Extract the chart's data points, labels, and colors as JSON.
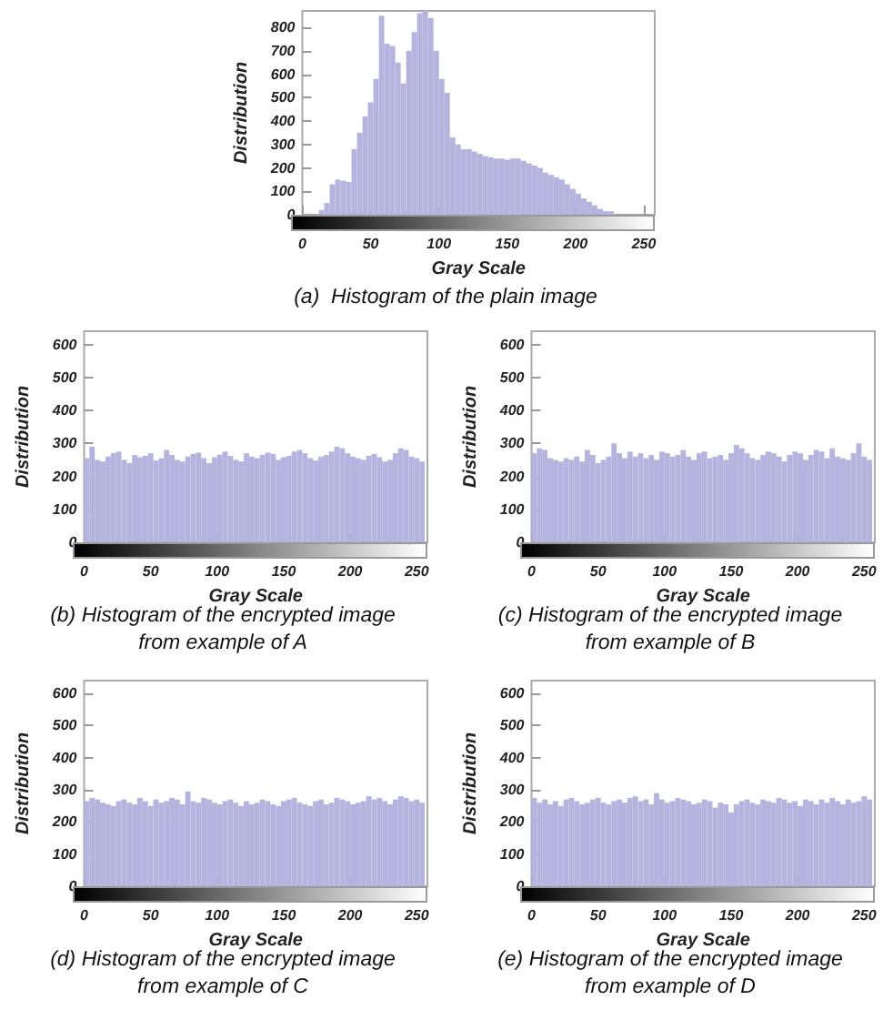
{
  "chart_data": [
    {
      "type": "histogram",
      "title": "(a)  Histogram of the plain image",
      "xlabel": "Gray Scale",
      "ylabel": "Distribution",
      "color": "#b4b4de",
      "xlim": [
        0,
        258
      ],
      "ylim": [
        0,
        870
      ],
      "xticks": [
        0,
        50,
        100,
        150,
        200,
        250
      ],
      "yticks": [
        0,
        100,
        200,
        300,
        400,
        500,
        600,
        700,
        800
      ],
      "bins": [
        0,
        4,
        8,
        12,
        16,
        20,
        24,
        28,
        32,
        36,
        40,
        44,
        48,
        52,
        56,
        60,
        64,
        68,
        72,
        76,
        80,
        84,
        88,
        92,
        96,
        100,
        104,
        108,
        112,
        116,
        120,
        124,
        128,
        132,
        136,
        140,
        144,
        148,
        152,
        156,
        160,
        164,
        168,
        172,
        176,
        180,
        184,
        188,
        192,
        196,
        200,
        204,
        208,
        212,
        216,
        220,
        224,
        228,
        232,
        236,
        240,
        244,
        248,
        252,
        256
      ],
      "values": [
        0,
        0,
        0,
        20,
        50,
        130,
        150,
        145,
        140,
        280,
        350,
        420,
        480,
        580,
        850,
        730,
        720,
        650,
        560,
        700,
        780,
        860,
        870,
        840,
        700,
        580,
        520,
        330,
        300,
        280,
        280,
        270,
        260,
        250,
        245,
        240,
        240,
        235,
        240,
        240,
        230,
        220,
        210,
        200,
        180,
        170,
        160,
        150,
        130,
        110,
        90,
        70,
        55,
        40,
        25,
        15,
        15,
        0,
        0,
        0,
        0,
        0,
        0,
        0
      ]
    },
    {
      "type": "histogram",
      "title": "(b) Histogram of the encrypted image\nfrom example of A",
      "xlabel": "Gray Scale",
      "ylabel": "Distribution",
      "color": "#b4b4de",
      "xlim": [
        0,
        258
      ],
      "ylim": [
        0,
        640
      ],
      "xticks": [
        0,
        50,
        100,
        150,
        200,
        250
      ],
      "yticks": [
        0,
        100,
        200,
        300,
        400,
        500,
        600
      ],
      "bins": [
        0,
        4,
        8,
        12,
        16,
        20,
        24,
        28,
        32,
        36,
        40,
        44,
        48,
        52,
        56,
        60,
        64,
        68,
        72,
        76,
        80,
        84,
        88,
        92,
        96,
        100,
        104,
        108,
        112,
        116,
        120,
        124,
        128,
        132,
        136,
        140,
        144,
        148,
        152,
        156,
        160,
        164,
        168,
        172,
        176,
        180,
        184,
        188,
        192,
        196,
        200,
        204,
        208,
        212,
        216,
        220,
        224,
        228,
        232,
        236,
        240,
        244,
        248,
        252,
        256
      ],
      "values": [
        255,
        290,
        250,
        245,
        260,
        270,
        275,
        250,
        240,
        265,
        258,
        262,
        270,
        248,
        255,
        280,
        265,
        250,
        245,
        260,
        268,
        272,
        255,
        240,
        258,
        266,
        275,
        262,
        250,
        245,
        270,
        260,
        255,
        265,
        272,
        268,
        250,
        258,
        262,
        275,
        280,
        270,
        255,
        248,
        260,
        265,
        275,
        290,
        285,
        270,
        260,
        255,
        250,
        262,
        268,
        258,
        245,
        250,
        270,
        285,
        280,
        260,
        255,
        245
      ]
    },
    {
      "type": "histogram",
      "title": "(c) Histogram of the encrypted image\nfrom example of B",
      "xlabel": "Gray Scale",
      "ylabel": "Distribution",
      "color": "#b4b4de",
      "xlim": [
        0,
        258
      ],
      "ylim": [
        0,
        640
      ],
      "xticks": [
        0,
        50,
        100,
        150,
        200,
        250
      ],
      "yticks": [
        0,
        100,
        200,
        300,
        400,
        500,
        600
      ],
      "bins": [
        0,
        4,
        8,
        12,
        16,
        20,
        24,
        28,
        32,
        36,
        40,
        44,
        48,
        52,
        56,
        60,
        64,
        68,
        72,
        76,
        80,
        84,
        88,
        92,
        96,
        100,
        104,
        108,
        112,
        116,
        120,
        124,
        128,
        132,
        136,
        140,
        144,
        148,
        152,
        156,
        160,
        164,
        168,
        172,
        176,
        180,
        184,
        188,
        192,
        196,
        200,
        204,
        208,
        212,
        216,
        220,
        224,
        228,
        232,
        236,
        240,
        244,
        248,
        252,
        256
      ],
      "values": [
        270,
        285,
        280,
        255,
        250,
        245,
        255,
        250,
        260,
        245,
        280,
        265,
        240,
        250,
        260,
        300,
        270,
        255,
        275,
        260,
        270,
        255,
        265,
        250,
        275,
        270,
        260,
        265,
        280,
        260,
        250,
        270,
        275,
        255,
        260,
        265,
        250,
        270,
        295,
        285,
        270,
        255,
        250,
        265,
        275,
        270,
        260,
        245,
        265,
        275,
        270,
        250,
        265,
        280,
        275,
        255,
        285,
        260,
        255,
        250,
        270,
        300,
        260,
        250
      ]
    },
    {
      "type": "histogram",
      "title": "(d) Histogram of the encrypted image\nfrom example of C",
      "xlabel": "Gray Scale",
      "ylabel": "Distribution",
      "color": "#b4b4de",
      "xlim": [
        0,
        258
      ],
      "ylim": [
        0,
        640
      ],
      "xticks": [
        0,
        50,
        100,
        150,
        200,
        250
      ],
      "yticks": [
        0,
        100,
        200,
        300,
        400,
        500,
        600
      ],
      "bins": [
        0,
        4,
        8,
        12,
        16,
        20,
        24,
        28,
        32,
        36,
        40,
        44,
        48,
        52,
        56,
        60,
        64,
        68,
        72,
        76,
        80,
        84,
        88,
        92,
        96,
        100,
        104,
        108,
        112,
        116,
        120,
        124,
        128,
        132,
        136,
        140,
        144,
        148,
        152,
        156,
        160,
        164,
        168,
        172,
        176,
        180,
        184,
        188,
        192,
        196,
        200,
        204,
        208,
        212,
        216,
        220,
        224,
        228,
        232,
        236,
        240,
        244,
        248,
        252,
        256
      ],
      "values": [
        265,
        275,
        270,
        260,
        255,
        250,
        265,
        270,
        260,
        255,
        275,
        265,
        250,
        270,
        260,
        265,
        275,
        270,
        255,
        295,
        265,
        260,
        275,
        270,
        260,
        255,
        265,
        270,
        260,
        250,
        265,
        255,
        260,
        270,
        265,
        255,
        250,
        265,
        270,
        275,
        260,
        255,
        250,
        265,
        270,
        255,
        260,
        275,
        270,
        265,
        255,
        260,
        265,
        280,
        270,
        275,
        265,
        255,
        270,
        280,
        275,
        265,
        270,
        260
      ]
    },
    {
      "type": "histogram",
      "title": "(e) Histogram of the encrypted image\nfrom example of D",
      "xlabel": "Gray Scale",
      "ylabel": "Distribution",
      "color": "#b4b4de",
      "xlim": [
        0,
        258
      ],
      "ylim": [
        0,
        640
      ],
      "xticks": [
        0,
        50,
        100,
        150,
        200,
        250
      ],
      "yticks": [
        0,
        100,
        200,
        300,
        400,
        500,
        600
      ],
      "bins": [
        0,
        4,
        8,
        12,
        16,
        20,
        24,
        28,
        32,
        36,
        40,
        44,
        48,
        52,
        56,
        60,
        64,
        68,
        72,
        76,
        80,
        84,
        88,
        92,
        96,
        100,
        104,
        108,
        112,
        116,
        120,
        124,
        128,
        132,
        136,
        140,
        144,
        148,
        152,
        156,
        160,
        164,
        168,
        172,
        176,
        180,
        184,
        188,
        192,
        196,
        200,
        204,
        208,
        212,
        216,
        220,
        224,
        228,
        232,
        236,
        240,
        244,
        248,
        252,
        256
      ],
      "values": [
        275,
        260,
        270,
        255,
        265,
        250,
        270,
        275,
        265,
        255,
        260,
        270,
        275,
        260,
        255,
        265,
        270,
        260,
        275,
        280,
        265,
        270,
        255,
        290,
        270,
        260,
        265,
        275,
        270,
        265,
        255,
        260,
        270,
        265,
        245,
        260,
        255,
        230,
        255,
        265,
        270,
        260,
        255,
        270,
        265,
        260,
        275,
        270,
        260,
        265,
        250,
        270,
        265,
        255,
        270,
        260,
        275,
        265,
        255,
        270,
        260,
        265,
        280,
        270
      ]
    }
  ]
}
